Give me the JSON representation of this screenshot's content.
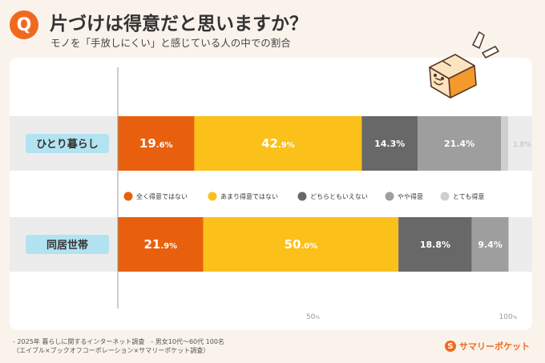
{
  "header": {
    "badge": "Q",
    "title": "片づけは得意だと思いますか？",
    "subtitle": "モノを「手放しにくい」と感じている人の中での割合"
  },
  "colors": {
    "accent": "#ef6a1f",
    "category_label_bg": "#b3e3f0",
    "series": [
      "#e8600e",
      "#fbc01a",
      "#686868",
      "#9e9e9e",
      "#cfcfcf"
    ]
  },
  "chart_data": {
    "type": "bar",
    "orientation": "horizontal",
    "stacked": true,
    "categories": [
      "ひとり暮らし",
      "同居世帯"
    ],
    "series": [
      {
        "name": "全く得意ではない",
        "values": [
          19.6,
          21.9
        ],
        "labels": [
          {
            "int": "19",
            "dec": ".6%"
          },
          {
            "int": "21",
            "dec": ".9%"
          }
        ]
      },
      {
        "name": "あまり得意ではない",
        "values": [
          42.9,
          50.0
        ],
        "labels": [
          {
            "int": "42",
            "dec": ".9%"
          },
          {
            "int": "50",
            "dec": ".0%"
          }
        ]
      },
      {
        "name": "どちらともいえない",
        "values": [
          14.3,
          18.8
        ],
        "labels": [
          "14.3%",
          "18.8%"
        ]
      },
      {
        "name": "やや得意",
        "values": [
          21.4,
          9.4
        ],
        "labels": [
          "21.4%",
          "9.4%"
        ]
      },
      {
        "name": "とても得意",
        "values": [
          1.8,
          0
        ],
        "labels": [
          "1.8%",
          ""
        ]
      }
    ],
    "xlim": [
      0,
      100
    ],
    "ticks": [
      {
        "value": 50,
        "label": "50",
        "unit": "%"
      },
      {
        "value": 100,
        "label": "100",
        "unit": "%"
      }
    ],
    "legend_position": "between-bars"
  },
  "footer": {
    "notes": [
      "- 2025年 暮らしに関するインターネット調査　- 男女10代〜60代 100名",
      "（エイブル×ブックオフコーポレーション×サマリーポケット調査）"
    ],
    "logo_mark": "S",
    "logo_text": "サマリーポケット"
  }
}
